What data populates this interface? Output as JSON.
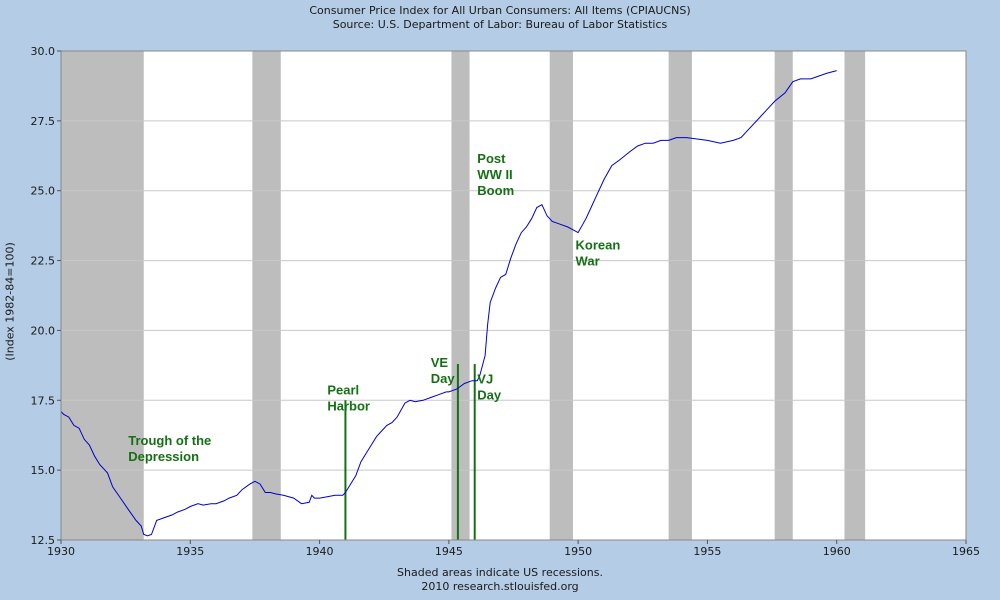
{
  "chart_data": {
    "type": "line",
    "title": "Consumer Price Index for All Urban Consumers: All Items (CPIAUCNS)",
    "subtitle": "Source: U.S. Department of Labor: Bureau of Labor Statistics",
    "ylabel": "(Index 1982-84=100)",
    "xlabel": "",
    "footnote1": "Shaded areas indicate US recessions.",
    "footnote2": "2010 research.stlouisfed.org",
    "xlim": [
      1930,
      1965
    ],
    "ylim": [
      12.5,
      30.0
    ],
    "x_ticks": [
      "1930",
      "1935",
      "1940",
      "1945",
      "1950",
      "1955",
      "1960",
      "1965"
    ],
    "y_ticks": [
      "12.5",
      "15.0",
      "17.5",
      "20.0",
      "22.5",
      "25.0",
      "27.5",
      "30.0"
    ],
    "grid": true,
    "line_color": "#0000cc",
    "recession_color": "#bdbdbd",
    "recessions": [
      [
        1929.6,
        1933.2
      ],
      [
        1937.4,
        1938.5
      ],
      [
        1945.1,
        1945.8
      ],
      [
        1948.9,
        1949.8
      ],
      [
        1953.5,
        1954.4
      ],
      [
        1957.6,
        1958.3
      ],
      [
        1960.3,
        1961.1
      ]
    ],
    "series": [
      {
        "name": "CPIAUCNS",
        "x": [
          1930.0,
          1930.1,
          1930.3,
          1930.5,
          1930.7,
          1930.9,
          1931.1,
          1931.3,
          1931.5,
          1931.8,
          1932.0,
          1932.3,
          1932.6,
          1932.9,
          1933.1,
          1933.2,
          1933.35,
          1933.5,
          1933.7,
          1934.0,
          1934.3,
          1934.5,
          1934.8,
          1935.0,
          1935.3,
          1935.5,
          1935.8,
          1936.0,
          1936.3,
          1936.5,
          1936.8,
          1937.0,
          1937.3,
          1937.5,
          1937.7,
          1937.9,
          1938.1,
          1938.3,
          1938.6,
          1939.0,
          1939.3,
          1939.6,
          1939.7,
          1939.8,
          1940.0,
          1940.3,
          1940.6,
          1940.9,
          1941.0,
          1941.2,
          1941.4,
          1941.6,
          1941.8,
          1942.0,
          1942.2,
          1942.4,
          1942.6,
          1942.8,
          1943.0,
          1943.3,
          1943.5,
          1943.7,
          1944.0,
          1944.3,
          1944.6,
          1944.9,
          1945.0,
          1945.3,
          1945.6,
          1945.9,
          1946.1,
          1946.2,
          1946.4,
          1946.5,
          1946.6,
          1946.8,
          1947.0,
          1947.2,
          1947.4,
          1947.6,
          1947.8,
          1948.0,
          1948.2,
          1948.4,
          1948.6,
          1948.8,
          1949.0,
          1949.3,
          1949.6,
          1949.8,
          1950.0,
          1950.3,
          1950.5,
          1950.7,
          1951.0,
          1951.3,
          1951.6,
          1952.0,
          1952.3,
          1952.6,
          1952.9,
          1953.2,
          1953.5,
          1953.8,
          1954.2,
          1954.6,
          1955.0,
          1955.5,
          1956.0,
          1956.3,
          1956.6,
          1957.0,
          1957.3,
          1957.6,
          1958.0,
          1958.3,
          1958.6,
          1959.0,
          1959.3,
          1959.6,
          1960.0
        ],
        "values": [
          17.1,
          17.0,
          16.9,
          16.6,
          16.5,
          16.1,
          15.9,
          15.5,
          15.2,
          14.9,
          14.4,
          14.0,
          13.6,
          13.2,
          13.0,
          12.7,
          12.65,
          12.7,
          13.2,
          13.3,
          13.4,
          13.5,
          13.6,
          13.7,
          13.8,
          13.75,
          13.8,
          13.8,
          13.9,
          14.0,
          14.1,
          14.3,
          14.5,
          14.6,
          14.5,
          14.2,
          14.2,
          14.15,
          14.1,
          14.0,
          13.8,
          13.85,
          14.1,
          14.0,
          14.0,
          14.05,
          14.1,
          14.1,
          14.2,
          14.5,
          14.8,
          15.3,
          15.6,
          15.9,
          16.2,
          16.4,
          16.6,
          16.7,
          16.9,
          17.4,
          17.5,
          17.45,
          17.5,
          17.6,
          17.7,
          17.8,
          17.8,
          17.9,
          18.1,
          18.2,
          18.2,
          18.4,
          19.1,
          20.2,
          21.0,
          21.5,
          21.9,
          22.0,
          22.6,
          23.1,
          23.5,
          23.7,
          24.0,
          24.4,
          24.5,
          24.1,
          23.9,
          23.8,
          23.7,
          23.6,
          23.5,
          24.0,
          24.4,
          24.8,
          25.4,
          25.9,
          26.1,
          26.4,
          26.6,
          26.7,
          26.7,
          26.8,
          26.8,
          26.9,
          26.9,
          26.85,
          26.8,
          26.7,
          26.8,
          26.9,
          27.2,
          27.6,
          27.9,
          28.2,
          28.5,
          28.9,
          29.0,
          29.0,
          29.1,
          29.2,
          29.3
        ]
      }
    ],
    "annotations": [
      {
        "name": "trough-label",
        "lines": [
          "Trough of the",
          "Depression"
        ],
        "x": 1932.6,
        "y": 15.9,
        "marker_x": null
      },
      {
        "name": "pearl-harbor",
        "lines": [
          "Pearl",
          "Harbor"
        ],
        "x": 1940.3,
        "y": 17.7,
        "marker_x": 1941.0,
        "marker_y_top": 17.5
      },
      {
        "name": "ve-day",
        "lines": [
          "VE",
          "Day"
        ],
        "x": 1944.3,
        "y": 18.7,
        "marker_x": 1945.35,
        "marker_y_top": 18.8
      },
      {
        "name": "vj-day",
        "lines": [
          "VJ",
          "Day"
        ],
        "x": 1946.1,
        "y": 18.1,
        "marker_x": 1946.0,
        "marker_y_top": 18.8
      },
      {
        "name": "post-ww2-boom",
        "lines": [
          "Post",
          "WW II",
          "Boom"
        ],
        "x": 1946.1,
        "y": 26.0,
        "marker_x": null
      },
      {
        "name": "korean-war",
        "lines": [
          "Korean",
          "War"
        ],
        "x": 1949.9,
        "y": 22.9,
        "marker_x": null
      }
    ],
    "annotation_color": "#157015"
  }
}
